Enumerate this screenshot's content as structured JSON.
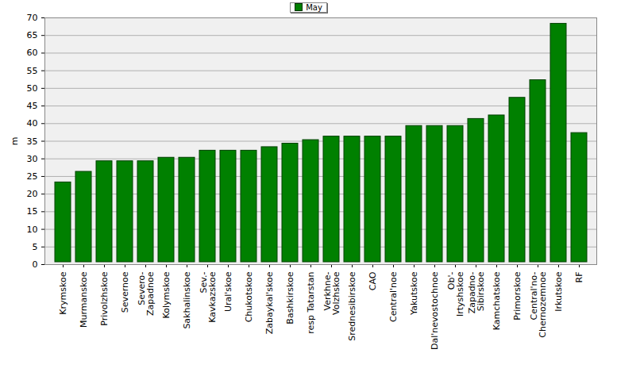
{
  "chart_data": {
    "type": "bar",
    "categories": [
      "Krymskoe",
      "Murmanskoe",
      "Privolzhskoe",
      "Severnoe",
      "Severo-Zapadnoe",
      "Kolymskoe",
      "Sakhalinskoe",
      "Sev.-Kavkazskoe",
      "Ural'skoe",
      "Chukotskoe",
      "Zabaykal'skoe",
      "Bashkirskoe",
      "resp Tatarstan",
      "Verkhne-Volzhskoe",
      "Srednesibirskoe",
      "CAO",
      "Central'noe",
      "Yakutskoe",
      "Dal'nevostochnoe",
      "Ob'-Irtyshskoe",
      "Zapadno-Sibirskoe",
      "Kamchatskoe",
      "Primorskoe",
      "Central'no-Chernozemnoe",
      "Irkutskoe",
      "RF"
    ],
    "series": [
      {
        "name": "May",
        "color": "#008000",
        "values": [
          24,
          27,
          30,
          30,
          30,
          31,
          31,
          33,
          33,
          33,
          34,
          35,
          36,
          37,
          37,
          37,
          37,
          40,
          40,
          40,
          42,
          43,
          48,
          53,
          69,
          38
        ]
      }
    ],
    "y_label": "m",
    "ylim": [
      0,
      70
    ],
    "yticks": [
      0,
      5,
      10,
      15,
      20,
      25,
      30,
      35,
      40,
      45,
      50,
      55,
      60,
      65,
      70
    ],
    "grid": true,
    "legend": "top"
  }
}
